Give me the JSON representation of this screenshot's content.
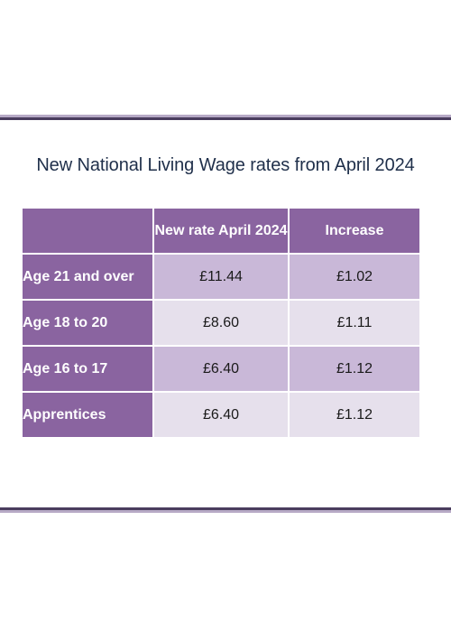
{
  "title": "New National Living Wage rates from April 2024",
  "table": {
    "headers": [
      "",
      "New rate April 2024",
      "Increase"
    ],
    "rows": [
      {
        "label": "Age 21 and over",
        "rate": "£11.44",
        "increase": "£1.02"
      },
      {
        "label": "Age 18 to 20",
        "rate": "£8.60",
        "increase": "£1.11"
      },
      {
        "label": "Age 16 to 17",
        "rate": "£6.40",
        "increase": "£1.12"
      },
      {
        "label": "Apprentices",
        "rate": "£6.40",
        "increase": "£1.12"
      }
    ]
  },
  "colors": {
    "header_purple": "#8a64a0",
    "row_dark": "#c9b8d8",
    "row_light": "#e6e0ec",
    "title_text": "#1f2f4a",
    "rule_dark": "#4a3d5e",
    "rule_light": "#b7aac6"
  }
}
